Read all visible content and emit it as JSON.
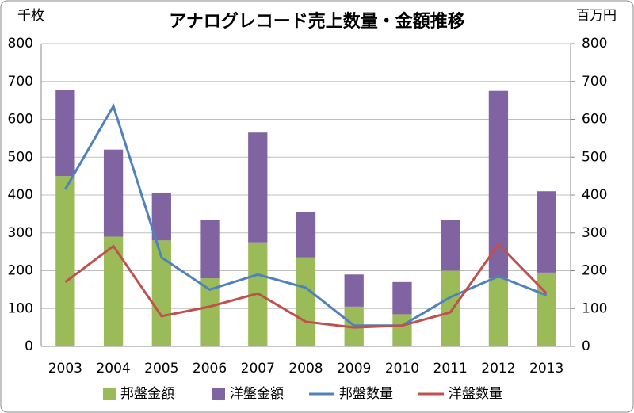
{
  "chart_data": {
    "type": "bar-line",
    "title": "アナログレコード売上数量・金額推移",
    "y_label": "千枚",
    "y2_label": "百万円",
    "categories": [
      "2003",
      "2004",
      "2005",
      "2006",
      "2007",
      "2008",
      "2009",
      "2010",
      "2011",
      "2012",
      "2013"
    ],
    "series": [
      {
        "name": "邦盤金額",
        "type": "bar",
        "stacked": true,
        "axis": "y2",
        "color": "#9bbb59",
        "values": [
          450,
          290,
          280,
          180,
          275,
          235,
          105,
          85,
          200,
          180,
          195
        ]
      },
      {
        "name": "洋盤金額",
        "type": "bar",
        "stacked": true,
        "axis": "y2",
        "color": "#8064a2",
        "values": [
          228,
          230,
          125,
          155,
          290,
          120,
          85,
          85,
          135,
          495,
          215
        ]
      },
      {
        "name": "邦盤数量",
        "type": "line",
        "color": "#4f81bd",
        "values": [
          415,
          635,
          235,
          150,
          190,
          155,
          55,
          55,
          130,
          185,
          135
        ]
      },
      {
        "name": "洋盤数量",
        "type": "line",
        "color": "#c0504d",
        "values": [
          170,
          265,
          80,
          105,
          140,
          65,
          50,
          55,
          90,
          270,
          140
        ]
      }
    ],
    "ylim": [
      0,
      800
    ],
    "yticks": [
      0,
      100,
      200,
      300,
      400,
      500,
      600,
      700,
      800
    ],
    "y2lim": [
      0,
      800
    ],
    "y2ticks": [
      0,
      100,
      200,
      300,
      400,
      500,
      600,
      700,
      800
    ],
    "grid": true,
    "legend": "bottom"
  }
}
